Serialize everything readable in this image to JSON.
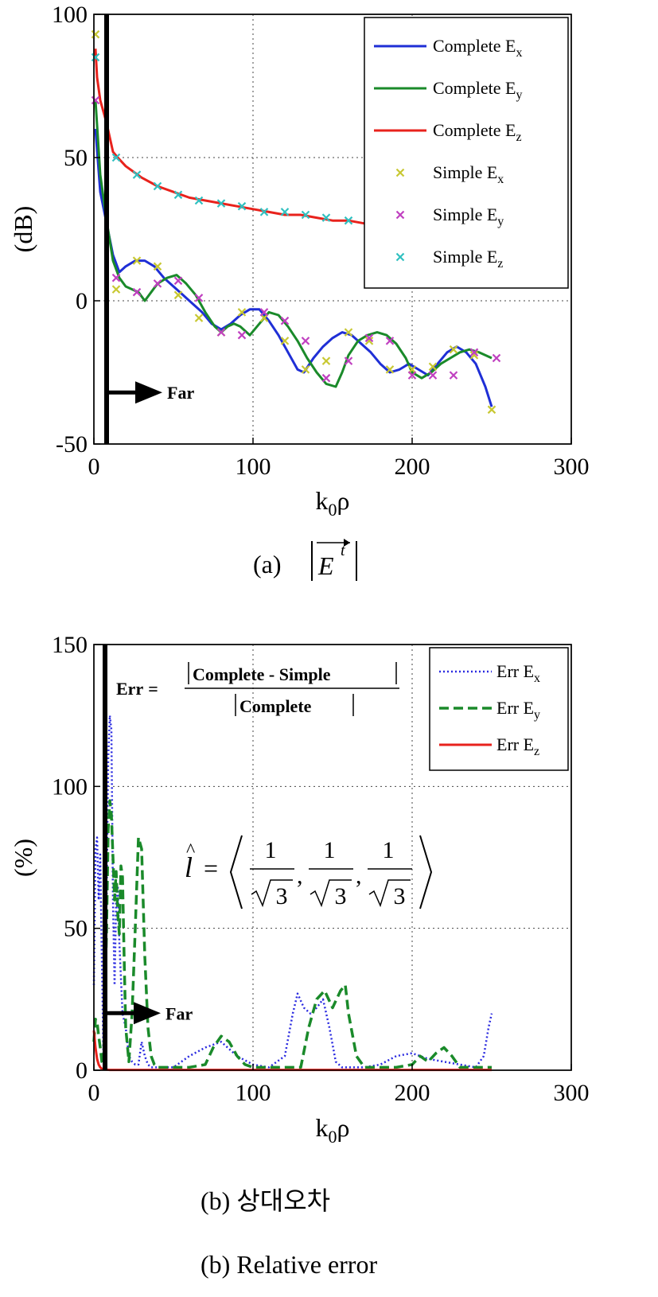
{
  "chart_data": [
    {
      "type": "line",
      "caption": "(a)",
      "caption_math": "|E⃗ᵗ|",
      "xlabel": "k",
      "xlabel_sub": "0",
      "xlabel_tail": "ρ",
      "ylabel": "(dB)",
      "xlim": [
        0,
        300
      ],
      "ylim": [
        -50,
        100
      ],
      "xticks": [
        "0",
        "100",
        "200",
        "300"
      ],
      "yticks": [
        "-50",
        "0",
        "50",
        "100"
      ],
      "grid": true,
      "legend_position": "top-right",
      "annotation": "Far",
      "far_line_x": 8,
      "series": [
        {
          "name": "Complete E",
          "sub": "x",
          "style": "line",
          "color": "#1f2fd6",
          "x": [
            1,
            4,
            8,
            12,
            16,
            20,
            26,
            32,
            38,
            44,
            50,
            56,
            62,
            68,
            74,
            80,
            86,
            92,
            98,
            104,
            110,
            116,
            122,
            128,
            132,
            138,
            144,
            150,
            156,
            162,
            168,
            174,
            180,
            186,
            192,
            198,
            204,
            210,
            216,
            222,
            228,
            234,
            240,
            246,
            250
          ],
          "y": [
            60,
            38,
            27,
            16,
            10,
            12,
            14,
            14,
            12,
            8,
            5,
            2,
            -1,
            -4,
            -8,
            -10,
            -8,
            -5,
            -3,
            -3,
            -7,
            -12,
            -18,
            -24,
            -25,
            -20,
            -16,
            -13,
            -11,
            -12,
            -15,
            -18,
            -22,
            -25,
            -24,
            -22,
            -24,
            -26,
            -22,
            -18,
            -16,
            -18,
            -22,
            -30,
            -37
          ]
        },
        {
          "name": "Complete E",
          "sub": "y",
          "style": "line",
          "color": "#1a8a2a",
          "x": [
            1,
            4,
            8,
            12,
            16,
            20,
            24,
            28,
            32,
            36,
            40,
            46,
            52,
            58,
            64,
            70,
            76,
            80,
            84,
            88,
            92,
            98,
            104,
            110,
            116,
            122,
            128,
            134,
            140,
            146,
            152,
            156,
            160,
            166,
            172,
            178,
            184,
            190,
            196,
            200,
            206,
            212,
            218,
            224,
            230,
            236,
            242,
            250
          ],
          "y": [
            70,
            44,
            28,
            14,
            8,
            5,
            4,
            3,
            0,
            3,
            6,
            8,
            9,
            6,
            2,
            -4,
            -9,
            -11,
            -9,
            -8,
            -9,
            -12,
            -8,
            -4,
            -5,
            -9,
            -14,
            -20,
            -25,
            -29,
            -30,
            -25,
            -19,
            -14,
            -12,
            -11,
            -12,
            -15,
            -20,
            -25,
            -27,
            -25,
            -22,
            -20,
            -18,
            -17,
            -18,
            -20
          ]
        },
        {
          "name": "Complete E",
          "sub": "z",
          "style": "line",
          "color": "#e8221c",
          "x": [
            1,
            2,
            4,
            6,
            8,
            10,
            12,
            15,
            20,
            25,
            30,
            40,
            50,
            60,
            70,
            80,
            90,
            100,
            110,
            120,
            130,
            140,
            150,
            160,
            170,
            180,
            190,
            200,
            210,
            220,
            230,
            240,
            250
          ],
          "y": [
            88,
            78,
            70,
            66,
            62,
            57,
            52,
            50,
            47,
            45,
            43,
            40,
            38,
            36,
            35,
            34,
            33,
            32,
            31,
            30,
            30,
            29,
            28,
            28,
            27,
            27,
            26,
            26,
            26,
            25,
            25,
            25,
            24
          ]
        },
        {
          "name": "Simple E",
          "sub": "x",
          "style": "markers",
          "color": "#c8c832",
          "x": [
            1,
            14,
            27,
            40,
            53,
            66,
            80,
            93,
            107,
            120,
            133,
            146,
            160,
            173,
            186,
            200,
            213,
            226,
            239,
            250
          ],
          "y": [
            93,
            4,
            14,
            12,
            2,
            -6,
            -11,
            -4,
            -6,
            -14,
            -24,
            -21,
            -11,
            -14,
            -24,
            -24,
            -23,
            -17,
            -19,
            -38
          ]
        },
        {
          "name": "Simple E",
          "sub": "y",
          "style": "markers",
          "color": "#c040c0",
          "x": [
            1,
            14,
            27,
            40,
            53,
            66,
            80,
            93,
            107,
            120,
            133,
            146,
            160,
            173,
            186,
            200,
            213,
            226,
            239,
            253
          ],
          "y": [
            70,
            8,
            3,
            6,
            7,
            1,
            -11,
            -12,
            -4,
            -7,
            -14,
            -27,
            -21,
            -13,
            -14,
            -26,
            -26,
            -26,
            -18,
            -20
          ]
        },
        {
          "name": "Simple E",
          "sub": "z",
          "style": "markers",
          "color": "#30c0c0",
          "x": [
            1,
            14,
            27,
            40,
            53,
            66,
            80,
            93,
            107,
            120,
            133,
            146,
            160,
            173,
            186,
            200,
            213,
            226,
            239,
            250
          ],
          "y": [
            85,
            50,
            44,
            40,
            37,
            35,
            34,
            33,
            31,
            31,
            30,
            29,
            28,
            27,
            27,
            26,
            26,
            25,
            25,
            24
          ]
        }
      ]
    },
    {
      "type": "line",
      "caption": "(b) 상대오차",
      "caption2": "(b) Relative error",
      "xlabel": "k",
      "xlabel_sub": "0",
      "xlabel_tail": "ρ",
      "ylabel": "(%)",
      "xlim": [
        0,
        300
      ],
      "ylim": [
        0,
        150
      ],
      "xticks": [
        "0",
        "100",
        "200",
        "300"
      ],
      "yticks": [
        "0",
        "50",
        "100",
        "150"
      ],
      "grid": true,
      "legend_position": "top-right",
      "annotation": "Far",
      "far_line_x": 7,
      "formula_lhs": "Err",
      "formula_numerator": "Complete - Simple",
      "formula_denominator": "Complete",
      "vector_symbol": "l",
      "vector_num": "1",
      "vector_rad": "3",
      "series": [
        {
          "name": "Err E",
          "sub": "x",
          "style": "dotted",
          "color": "#2a2ae0",
          "x": [
            0,
            1,
            2,
            3,
            4,
            5,
            6,
            7,
            8,
            9,
            10,
            11,
            12,
            13,
            14,
            15,
            16,
            18,
            20,
            22,
            24,
            26,
            28,
            30,
            32,
            34,
            36,
            40,
            50,
            60,
            70,
            80,
            90,
            100,
            110,
            120,
            125,
            128,
            132,
            136,
            140,
            144,
            148,
            152,
            156,
            160,
            170,
            180,
            190,
            200,
            210,
            220,
            230,
            240,
            245,
            248,
            250
          ],
          "y": [
            30,
            78,
            82,
            60,
            76,
            40,
            5,
            5,
            60,
            110,
            125,
            120,
            60,
            30,
            60,
            65,
            45,
            20,
            15,
            5,
            3,
            2,
            2,
            10,
            5,
            2,
            1,
            1,
            1,
            5,
            8,
            10,
            5,
            2,
            1,
            5,
            20,
            27,
            22,
            20,
            22,
            25,
            15,
            3,
            1,
            1,
            1,
            2,
            5,
            6,
            4,
            3,
            2,
            1,
            5,
            15,
            20
          ]
        },
        {
          "name": "Err E",
          "sub": "y",
          "style": "dashed",
          "color": "#1a8a2a",
          "x": [
            0,
            1,
            2,
            3,
            4,
            5,
            6,
            8,
            9,
            10,
            11,
            12,
            13,
            14,
            15,
            16,
            17,
            18,
            19,
            20,
            22,
            24,
            26,
            28,
            30,
            32,
            34,
            36,
            38,
            40,
            45,
            50,
            60,
            70,
            75,
            80,
            85,
            90,
            95,
            100,
            110,
            120,
            130,
            135,
            140,
            145,
            150,
            155,
            158,
            160,
            165,
            170,
            180,
            190,
            200,
            205,
            210,
            215,
            220,
            225,
            230,
            240,
            250
          ],
          "y": [
            10,
            18,
            17,
            12,
            8,
            3,
            2,
            50,
            85,
            95,
            90,
            75,
            60,
            70,
            55,
            48,
            72,
            68,
            40,
            15,
            3,
            20,
            50,
            82,
            78,
            40,
            15,
            5,
            2,
            1,
            1,
            1,
            1,
            2,
            8,
            12,
            10,
            5,
            2,
            1,
            1,
            1,
            1,
            15,
            25,
            28,
            22,
            28,
            30,
            20,
            5,
            1,
            1,
            1,
            2,
            5,
            3,
            6,
            8,
            5,
            1,
            1,
            1
          ]
        },
        {
          "name": "Err E",
          "sub": "z",
          "style": "solid",
          "color": "#e8221c",
          "x": [
            0,
            1,
            2,
            3,
            4,
            5,
            6,
            8,
            10,
            20,
            50,
            100,
            150,
            200,
            250
          ],
          "y": [
            14,
            8,
            4,
            2,
            1,
            0.5,
            0.3,
            0.2,
            0.1,
            0.1,
            0.1,
            0.1,
            0.1,
            0.1,
            0.1
          ]
        }
      ]
    }
  ]
}
